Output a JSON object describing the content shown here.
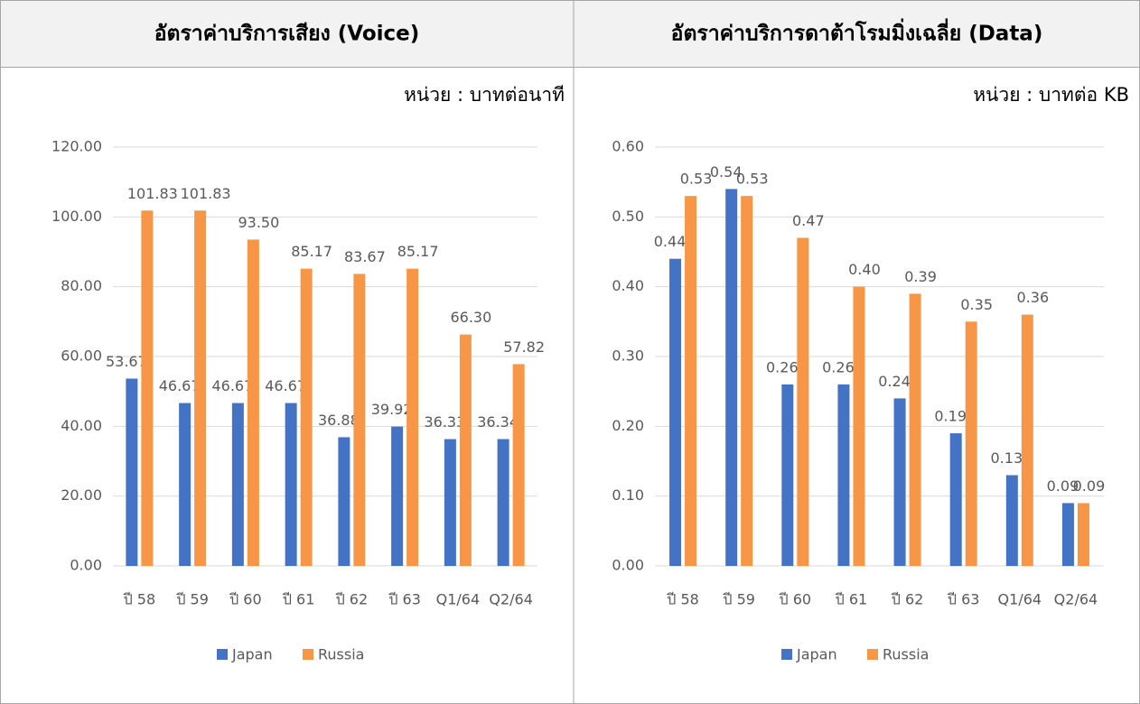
{
  "chart_data": [
    {
      "type": "bar",
      "title": "อัตราค่าบริการเสียง (Voice)",
      "unit_label": "หน่วย : บาทต่อนาที",
      "categories": [
        "ปี 58",
        "ปี 59",
        "ปี 60",
        "ปี 61",
        "ปี 62",
        "ปี 63",
        "Q1/64",
        "Q2/64"
      ],
      "series": [
        {
          "name": "Japan",
          "color": "#4472c4",
          "values": [
            53.67,
            46.67,
            46.67,
            46.67,
            36.88,
            39.92,
            36.33,
            36.34
          ],
          "value_labels": [
            "53.67",
            "46.67",
            "46.67",
            "46.67",
            "36.88",
            "39.92",
            "36.33",
            "36.34"
          ]
        },
        {
          "name": "Russia",
          "color": "#f79646",
          "values": [
            101.83,
            101.83,
            93.5,
            85.17,
            83.67,
            85.17,
            66.3,
            57.82
          ],
          "value_labels": [
            "101.83",
            "101.83",
            "93.50",
            "85.17",
            "83.67",
            "85.17",
            "66.30",
            "57.82"
          ]
        }
      ],
      "ylim": [
        0,
        120
      ],
      "yticks": [
        {
          "value": 0,
          "label": "0.00"
        },
        {
          "value": 20,
          "label": "20.00"
        },
        {
          "value": 40,
          "label": "40.00"
        },
        {
          "value": 60,
          "label": "60.00"
        },
        {
          "value": 80,
          "label": "80.00"
        },
        {
          "value": 100,
          "label": "100.00"
        },
        {
          "value": 120,
          "label": "120.00"
        }
      ],
      "grid": true,
      "legend": "bottom"
    },
    {
      "type": "bar",
      "title": "อัตราค่าบริการดาต้าโรมมิ่งเฉลี่ย (Data)",
      "unit_label": "หน่วย : บาทต่อ KB",
      "categories": [
        "ปี 58",
        "ปี 59",
        "ปี 60",
        "ปี 61",
        "ปี 62",
        "ปี 63",
        "Q1/64",
        "Q2/64"
      ],
      "series": [
        {
          "name": "Japan",
          "color": "#4472c4",
          "values": [
            0.44,
            0.54,
            0.26,
            0.26,
            0.24,
            0.19,
            0.13,
            0.09
          ],
          "value_labels": [
            "0.44",
            "0.54",
            "0.26",
            "0.26",
            "0.24",
            "0.19",
            "0.13",
            "0.09"
          ]
        },
        {
          "name": "Russia",
          "color": "#f79646",
          "values": [
            0.53,
            0.53,
            0.47,
            0.4,
            0.39,
            0.35,
            0.36,
            0.09
          ],
          "value_labels": [
            "0.53",
            "0.53",
            "0.47",
            "0.40",
            "0.39",
            "0.35",
            "0.36",
            "0.09"
          ]
        }
      ],
      "ylim": [
        0,
        0.6
      ],
      "yticks": [
        {
          "value": 0,
          "label": "0.00"
        },
        {
          "value": 0.1,
          "label": "0.10"
        },
        {
          "value": 0.2,
          "label": "0.20"
        },
        {
          "value": 0.3,
          "label": "0.30"
        },
        {
          "value": 0.4,
          "label": "0.40"
        },
        {
          "value": 0.5,
          "label": "0.50"
        },
        {
          "value": 0.6,
          "label": "0.60"
        }
      ],
      "grid": true,
      "legend": "bottom"
    }
  ]
}
